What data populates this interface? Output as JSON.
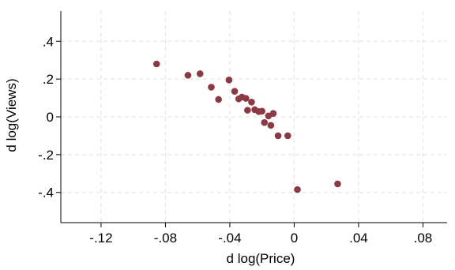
{
  "chart_data": {
    "type": "scatter",
    "title": "",
    "xlabel": "d log(Price)",
    "ylabel": "d log(Views)",
    "xlim": [
      -0.145,
      0.095
    ],
    "ylim": [
      -0.56,
      0.56
    ],
    "x_ticks": [
      -0.12,
      -0.08,
      -0.04,
      0,
      0.04,
      0.08
    ],
    "x_tick_labels": [
      "-.12",
      "-.08",
      "-.04",
      "0",
      ".04",
      ".08"
    ],
    "y_ticks": [
      -0.4,
      -0.2,
      0,
      0.2,
      0.4
    ],
    "y_tick_labels": [
      "-.4",
      "-.2",
      "0",
      ".2",
      ".4"
    ],
    "grid": true,
    "marker_color": "#8b3a43",
    "grid_color": "#e6e6e6",
    "points": [
      {
        "x": -0.0855,
        "y": 0.28
      },
      {
        "x": -0.066,
        "y": 0.22
      },
      {
        "x": -0.0585,
        "y": 0.228
      },
      {
        "x": -0.0515,
        "y": 0.157
      },
      {
        "x": -0.047,
        "y": 0.092
      },
      {
        "x": -0.0405,
        "y": 0.195
      },
      {
        "x": -0.037,
        "y": 0.135
      },
      {
        "x": -0.0345,
        "y": 0.095
      },
      {
        "x": -0.0325,
        "y": 0.105
      },
      {
        "x": -0.03,
        "y": 0.098
      },
      {
        "x": -0.029,
        "y": 0.035
      },
      {
        "x": -0.0265,
        "y": 0.078
      },
      {
        "x": -0.0245,
        "y": 0.038
      },
      {
        "x": -0.022,
        "y": 0.028
      },
      {
        "x": -0.02,
        "y": 0.03
      },
      {
        "x": -0.0185,
        "y": -0.03
      },
      {
        "x": -0.016,
        "y": 0.005
      },
      {
        "x": -0.0145,
        "y": -0.045
      },
      {
        "x": -0.013,
        "y": 0.018
      },
      {
        "x": -0.01,
        "y": -0.1
      },
      {
        "x": -0.004,
        "y": -0.1
      },
      {
        "x": 0.002,
        "y": -0.385
      },
      {
        "x": 0.027,
        "y": -0.355
      }
    ]
  }
}
